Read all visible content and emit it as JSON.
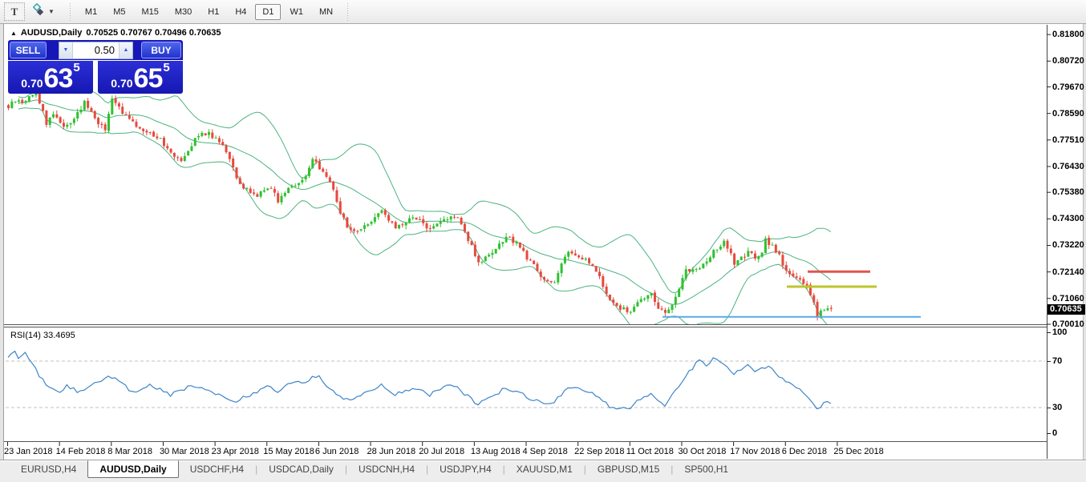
{
  "toolbar": {
    "text_tool_label": "T",
    "timeframes": [
      "M1",
      "M5",
      "M15",
      "M30",
      "H1",
      "H4",
      "D1",
      "W1",
      "MN"
    ],
    "active_timeframe": "D1"
  },
  "chart_title": {
    "symbol": "AUDUSD,Daily",
    "ohlc_text": "0.70525 0.70767 0.70496 0.70635"
  },
  "trade_widget": {
    "sell_label": "SELL",
    "buy_label": "BUY",
    "volume": "0.50",
    "bid": {
      "prefix": "0.70",
      "big": "63",
      "sup": "5"
    },
    "ask": {
      "prefix": "0.70",
      "big": "65",
      "sup": "5"
    }
  },
  "rsi_label": "RSI(14) 33.4695",
  "price_tag": "0.70635",
  "tabs": {
    "items": [
      "EURUSD,H4",
      "AUDUSD,Daily",
      "USDCHF,H4",
      "USDCAD,Daily",
      "USDCNH,H4",
      "USDJPY,H4",
      "XAUUSD,M1",
      "GBPUSD,M15",
      "SP500,H1"
    ],
    "active": "AUDUSD,Daily"
  },
  "chart_data": {
    "type": "candlestick",
    "symbol": "AUDUSD",
    "timeframe": "Daily",
    "ohlc": {
      "open": 0.70525,
      "high": 0.70767,
      "low": 0.70496,
      "close": 0.70635
    },
    "current_price": 0.70635,
    "bid": 0.70635,
    "ask": 0.70655,
    "candle_count": 239,
    "y_range": [
      0.7001,
      0.82196
    ],
    "y_axis_ticks": [
      "0.81800",
      "0.80720",
      "0.79670",
      "0.78590",
      "0.77510",
      "0.76430",
      "0.75380",
      "0.74300",
      "0.73220",
      "0.72140",
      "0.71060",
      "0.70010"
    ],
    "x_axis_ticks": [
      "23 Jan 2018",
      "14 Feb 2018",
      "8 Mar 2018",
      "30 Mar 2018",
      "23 Apr 2018",
      "15 May 2018",
      "6 Jun 2018",
      "28 Jun 2018",
      "20 Jul 2018",
      "13 Aug 2018",
      "4 Sep 2018",
      "22 Sep 2018",
      "11 Oct 2018",
      "30 Oct 2018",
      "17 Nov 2018",
      "6 Dec 2018",
      "25 Dec 2018"
    ],
    "up_color": "#2fc12f",
    "down_color": "#e7493e",
    "price_path_anchors": [
      [
        0,
        0.7885
      ],
      [
        2,
        0.7912
      ],
      [
        4,
        0.7902
      ],
      [
        6,
        0.7928
      ],
      [
        8,
        0.794
      ],
      [
        10,
        0.7868
      ],
      [
        11,
        0.7818
      ],
      [
        13,
        0.786
      ],
      [
        15,
        0.7826
      ],
      [
        16,
        0.7806
      ],
      [
        18,
        0.7824
      ],
      [
        20,
        0.7856
      ],
      [
        22,
        0.7908
      ],
      [
        24,
        0.7862
      ],
      [
        26,
        0.7822
      ],
      [
        28,
        0.7792
      ],
      [
        30,
        0.7914
      ],
      [
        32,
        0.7886
      ],
      [
        34,
        0.7846
      ],
      [
        36,
        0.7818
      ],
      [
        38,
        0.78
      ],
      [
        40,
        0.7786
      ],
      [
        42,
        0.7772
      ],
      [
        44,
        0.7752
      ],
      [
        46,
        0.7718
      ],
      [
        48,
        0.769
      ],
      [
        50,
        0.7674
      ],
      [
        52,
        0.771
      ],
      [
        54,
        0.7758
      ],
      [
        56,
        0.7775
      ],
      [
        58,
        0.778
      ],
      [
        60,
        0.7752
      ],
      [
        62,
        0.7734
      ],
      [
        64,
        0.768
      ],
      [
        66,
        0.7588
      ],
      [
        68,
        0.7556
      ],
      [
        70,
        0.7538
      ],
      [
        72,
        0.7528
      ],
      [
        74,
        0.755
      ],
      [
        76,
        0.756
      ],
      [
        78,
        0.7506
      ],
      [
        80,
        0.754
      ],
      [
        82,
        0.7568
      ],
      [
        84,
        0.7578
      ],
      [
        86,
        0.76
      ],
      [
        88,
        0.7668
      ],
      [
        90,
        0.764
      ],
      [
        92,
        0.76
      ],
      [
        94,
        0.7552
      ],
      [
        96,
        0.746
      ],
      [
        98,
        0.7395
      ],
      [
        100,
        0.738
      ],
      [
        102,
        0.739
      ],
      [
        104,
        0.7412
      ],
      [
        106,
        0.744
      ],
      [
        108,
        0.7462
      ],
      [
        110,
        0.742
      ],
      [
        112,
        0.7395
      ],
      [
        114,
        0.7412
      ],
      [
        116,
        0.7428
      ],
      [
        118,
        0.7432
      ],
      [
        120,
        0.741
      ],
      [
        122,
        0.7386
      ],
      [
        124,
        0.741
      ],
      [
        126,
        0.7428
      ],
      [
        128,
        0.7444
      ],
      [
        130,
        0.7428
      ],
      [
        132,
        0.7372
      ],
      [
        134,
        0.732
      ],
      [
        136,
        0.7252
      ],
      [
        138,
        0.7268
      ],
      [
        140,
        0.7286
      ],
      [
        142,
        0.7322
      ],
      [
        144,
        0.7352
      ],
      [
        146,
        0.734
      ],
      [
        148,
        0.7318
      ],
      [
        150,
        0.7272
      ],
      [
        152,
        0.724
      ],
      [
        154,
        0.7192
      ],
      [
        156,
        0.7178
      ],
      [
        158,
        0.7172
      ],
      [
        160,
        0.7255
      ],
      [
        162,
        0.7295
      ],
      [
        164,
        0.7282
      ],
      [
        166,
        0.7272
      ],
      [
        168,
        0.725
      ],
      [
        170,
        0.7218
      ],
      [
        172,
        0.716
      ],
      [
        174,
        0.7095
      ],
      [
        176,
        0.7075
      ],
      [
        178,
        0.7062
      ],
      [
        180,
        0.7052
      ],
      [
        182,
        0.7092
      ],
      [
        184,
        0.7108
      ],
      [
        186,
        0.7122
      ],
      [
        188,
        0.7072
      ],
      [
        190,
        0.7042
      ],
      [
        192,
        0.708
      ],
      [
        194,
        0.715
      ],
      [
        196,
        0.7222
      ],
      [
        198,
        0.7226
      ],
      [
        200,
        0.7232
      ],
      [
        202,
        0.7262
      ],
      [
        204,
        0.7295
      ],
      [
        206,
        0.7322
      ],
      [
        207,
        0.7332
      ],
      [
        209,
        0.7282
      ],
      [
        210,
        0.7242
      ],
      [
        212,
        0.7268
      ],
      [
        214,
        0.7292
      ],
      [
        216,
        0.7272
      ],
      [
        218,
        0.73
      ],
      [
        219,
        0.7342
      ],
      [
        221,
        0.7318
      ],
      [
        223,
        0.7282
      ],
      [
        225,
        0.7212
      ],
      [
        227,
        0.72
      ],
      [
        229,
        0.7188
      ],
      [
        231,
        0.7152
      ],
      [
        233,
        0.7082
      ],
      [
        234,
        0.7038
      ],
      [
        236,
        0.7062
      ],
      [
        238,
        0.70635
      ]
    ],
    "indicators": {
      "bollinger": {
        "period": 20,
        "deviation": 2,
        "color": "#4db381"
      },
      "rsi": {
        "period": 14,
        "current": 33.4695,
        "range": [
          0,
          100
        ],
        "levels": [
          70,
          30
        ],
        "ticks": [
          "100",
          "70",
          "30",
          "0"
        ],
        "line_color": "#3d85c8",
        "level_color": "#c0c0c0",
        "anchors": [
          [
            0,
            74
          ],
          [
            2,
            77
          ],
          [
            3,
            72
          ],
          [
            5,
            76
          ],
          [
            7,
            69
          ],
          [
            9,
            58
          ],
          [
            11,
            50
          ],
          [
            13,
            46
          ],
          [
            15,
            44
          ],
          [
            17,
            49
          ],
          [
            19,
            46
          ],
          [
            21,
            43
          ],
          [
            23,
            46
          ],
          [
            25,
            50
          ],
          [
            27,
            53
          ],
          [
            29,
            56
          ],
          [
            31,
            54
          ],
          [
            33,
            50
          ],
          [
            35,
            46
          ],
          [
            37,
            44
          ],
          [
            39,
            47
          ],
          [
            41,
            50
          ],
          [
            43,
            47
          ],
          [
            45,
            44
          ],
          [
            47,
            41
          ],
          [
            49,
            43
          ],
          [
            51,
            46
          ],
          [
            53,
            50
          ],
          [
            55,
            48
          ],
          [
            57,
            46
          ],
          [
            59,
            44
          ],
          [
            61,
            41
          ],
          [
            63,
            38
          ],
          [
            66,
            36
          ],
          [
            69,
            40
          ],
          [
            72,
            44
          ],
          [
            75,
            48
          ],
          [
            78,
            43
          ],
          [
            81,
            49
          ],
          [
            84,
            52
          ],
          [
            86,
            50
          ],
          [
            88,
            56
          ],
          [
            90,
            57
          ],
          [
            92,
            50
          ],
          [
            94,
            45
          ],
          [
            97,
            38
          ],
          [
            100,
            37
          ],
          [
            102,
            40
          ],
          [
            104,
            44
          ],
          [
            106,
            47
          ],
          [
            108,
            49
          ],
          [
            110,
            44
          ],
          [
            112,
            41
          ],
          [
            115,
            45
          ],
          [
            118,
            47
          ],
          [
            120,
            44
          ],
          [
            122,
            41
          ],
          [
            125,
            46
          ],
          [
            127,
            48
          ],
          [
            129,
            49
          ],
          [
            131,
            44
          ],
          [
            133,
            40
          ],
          [
            136,
            33
          ],
          [
            138,
            36
          ],
          [
            140,
            39
          ],
          [
            142,
            43
          ],
          [
            144,
            47
          ],
          [
            146,
            45
          ],
          [
            148,
            44
          ],
          [
            151,
            38
          ],
          [
            154,
            35
          ],
          [
            156,
            33
          ],
          [
            158,
            34
          ],
          [
            161,
            45
          ],
          [
            163,
            47
          ],
          [
            165,
            46
          ],
          [
            167,
            45
          ],
          [
            169,
            42
          ],
          [
            171,
            39
          ],
          [
            174,
            31
          ],
          [
            176,
            30
          ],
          [
            178,
            29
          ],
          [
            180,
            28
          ],
          [
            182,
            35
          ],
          [
            184,
            38
          ],
          [
            186,
            41
          ],
          [
            188,
            35
          ],
          [
            190,
            32
          ],
          [
            192,
            40
          ],
          [
            194,
            48
          ],
          [
            196,
            58
          ],
          [
            198,
            64
          ],
          [
            200,
            71
          ],
          [
            202,
            66
          ],
          [
            204,
            73
          ],
          [
            206,
            70
          ],
          [
            208,
            64
          ],
          [
            210,
            59
          ],
          [
            212,
            63
          ],
          [
            214,
            66
          ],
          [
            216,
            60
          ],
          [
            218,
            63
          ],
          [
            220,
            67
          ],
          [
            222,
            60
          ],
          [
            224,
            54
          ],
          [
            226,
            50
          ],
          [
            228,
            47
          ],
          [
            230,
            43
          ],
          [
            232,
            36
          ],
          [
            234,
            28
          ],
          [
            236,
            34
          ],
          [
            238,
            33.47
          ]
        ]
      }
    },
    "overlays": [
      {
        "name": "resistance-line",
        "color": "#e0554e",
        "price": 0.7215,
        "x1": 1007,
        "x2": 1085,
        "width": 3
      },
      {
        "name": "mid-support-line",
        "color": "#bdc62c",
        "price": 0.7154,
        "x1": 981,
        "x2": 1093,
        "width": 3
      },
      {
        "name": "support-line",
        "color": "#59a9e8",
        "price": 0.7031,
        "x1": 826,
        "x2": 1148,
        "width": 2
      }
    ]
  }
}
